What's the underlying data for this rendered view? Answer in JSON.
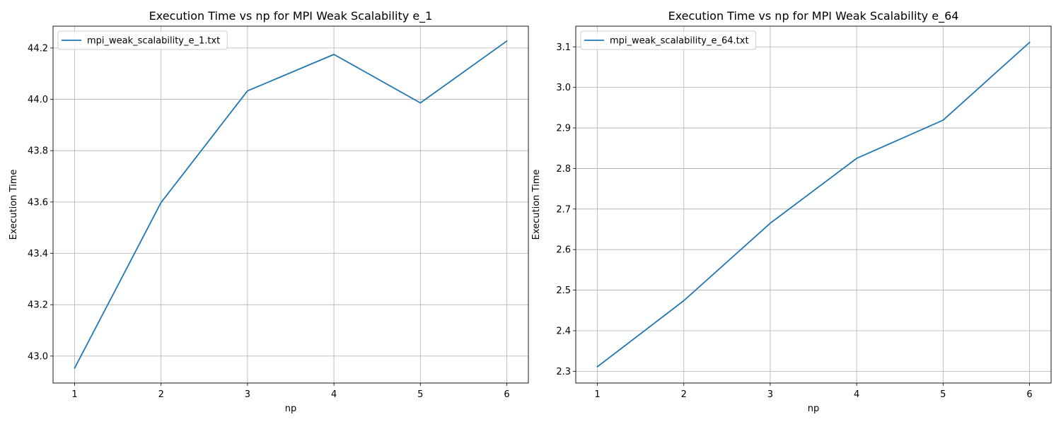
{
  "chart_data": [
    {
      "type": "line",
      "title": "Execution Time vs np for MPI Weak Scalability e_1",
      "xlabel": "np",
      "ylabel": "Execution Time",
      "x": [
        1,
        2,
        3,
        4,
        5,
        6
      ],
      "xticks": [
        "1",
        "2",
        "3",
        "4",
        "5",
        "6"
      ],
      "xlim": [
        0.75,
        6.25
      ],
      "ylim": [
        42.895,
        44.285
      ],
      "yticks": [
        "43.0",
        "43.2",
        "43.4",
        "43.6",
        "43.8",
        "44.0",
        "44.2"
      ],
      "grid": true,
      "legend_position": "top-left",
      "series": [
        {
          "name": "mpi_weak_scalability_e_1.txt",
          "color": "#1f77b4",
          "values": [
            42.953,
            43.598,
            44.033,
            44.175,
            43.986,
            44.227
          ]
        }
      ]
    },
    {
      "type": "line",
      "title": "Execution Time vs np for MPI Weak Scalability e_64",
      "xlabel": "np",
      "ylabel": "Execution Time",
      "x": [
        1,
        2,
        3,
        4,
        5,
        6
      ],
      "xticks": [
        "1",
        "2",
        "3",
        "4",
        "5",
        "6"
      ],
      "xlim": [
        0.75,
        6.25
      ],
      "ylim": [
        2.271,
        3.151
      ],
      "yticks": [
        "2.3",
        "2.4",
        "2.5",
        "2.6",
        "2.7",
        "2.8",
        "2.9",
        "3.0",
        "3.1"
      ],
      "grid": true,
      "legend_position": "top-left",
      "series": [
        {
          "name": "mpi_weak_scalability_e_64.txt",
          "color": "#1f77b4",
          "values": [
            2.311,
            2.474,
            2.665,
            2.825,
            2.919,
            3.111
          ]
        }
      ]
    }
  ]
}
